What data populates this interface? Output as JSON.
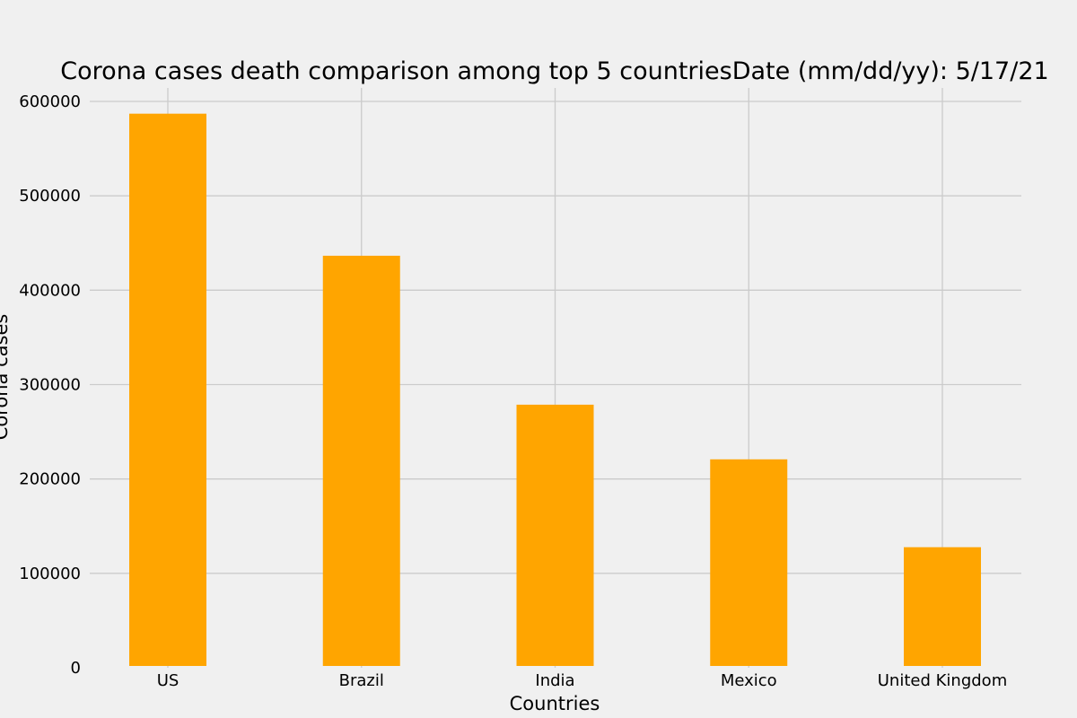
{
  "chart_data": {
    "type": "bar",
    "title": "Corona cases death comparison among top 5 countriesDate (mm/dd/yy): 5/17/21",
    "xlabel": "Countries",
    "ylabel": "Corona cases",
    "categories": [
      "US",
      "Brazil",
      "India",
      "Mexico",
      "United Kingdom"
    ],
    "values": [
      587000,
      436500,
      278700,
      220800,
      127700
    ],
    "ylim": [
      0,
      615000
    ],
    "yticks": [
      0,
      100000,
      200000,
      300000,
      400000,
      500000,
      600000
    ],
    "grid": true,
    "colors": {
      "bar": "#ffa500",
      "background": "#f0f0f0",
      "grid": "#cbcbcb"
    }
  }
}
